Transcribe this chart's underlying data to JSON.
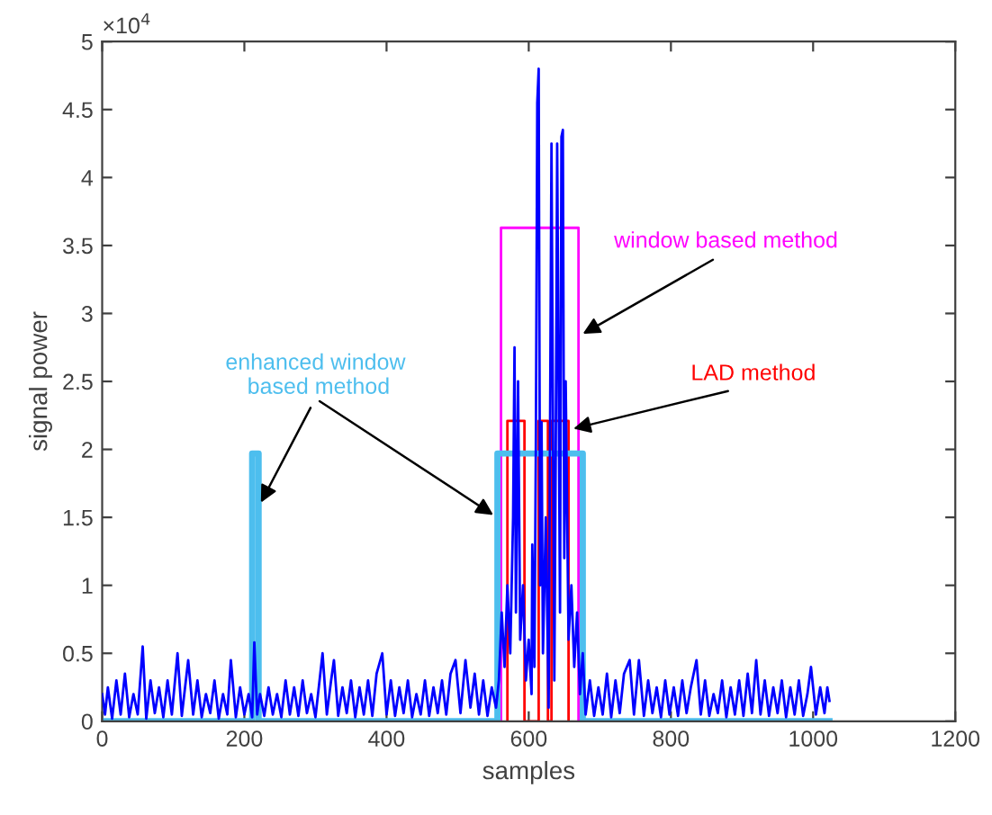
{
  "chart_data": {
    "type": "line",
    "xlabel": "samples",
    "ylabel": "signal power",
    "xlim": [
      0,
      1200
    ],
    "xticks": [
      0,
      200,
      400,
      600,
      800,
      1000,
      1200
    ],
    "ylim": [
      0,
      5
    ],
    "yticks": [
      0,
      0.5,
      1,
      1.5,
      2,
      2.5,
      3,
      3.5,
      4,
      4.5,
      5
    ],
    "grid": false,
    "legend": false,
    "marker": "none",
    "line_style": "solid",
    "annotations": [
      "×10$^{4}$"
    ],
    "series": [
      {
        "color": "#0000ff",
        "x": [
          0,
          4,
          8,
          14,
          20,
          26,
          32,
          38,
          44,
          50,
          57,
          62,
          68,
          74,
          80,
          86,
          92,
          98,
          106,
          112,
          121,
          128,
          134,
          140,
          146,
          152,
          158,
          164,
          170,
          176,
          181,
          188,
          194,
          200,
          206,
          211,
          214,
          218,
          222,
          228,
          234,
          240,
          246,
          252,
          258,
          264,
          270,
          276,
          282,
          288,
          294,
          300,
          310,
          316,
          322,
          326,
          332,
          338,
          344,
          350,
          356,
          362,
          368,
          374,
          380,
          386,
          394,
          400,
          406,
          412,
          418,
          424,
          430,
          436,
          442,
          448,
          454,
          460,
          466,
          472,
          478,
          484,
          490,
          497,
          504,
          511,
          518,
          524,
          530,
          536,
          542,
          548,
          554,
          558,
          562,
          566,
          570,
          574,
          578,
          580,
          582,
          585,
          588,
          592,
          596,
          600,
          604,
          605,
          608,
          610,
          612,
          614,
          616,
          618,
          620,
          624,
          628,
          632,
          636,
          638,
          640,
          644,
          646,
          648,
          650,
          652,
          656,
          660,
          664,
          668,
          672,
          676,
          680,
          686,
          692,
          698,
          704,
          710,
          716,
          722,
          728,
          734,
          742,
          748,
          755,
          762,
          768,
          774,
          780,
          786,
          792,
          798,
          804,
          810,
          816,
          822,
          828,
          836,
          842,
          848,
          854,
          860,
          866,
          872,
          878,
          884,
          890,
          896,
          902,
          908,
          914,
          920,
          926,
          932,
          938,
          944,
          950,
          956,
          962,
          968,
          974,
          980,
          986,
          992,
          997,
          1004,
          1010,
          1016,
          1020,
          1023
        ],
        "values": [
          0.2,
          0.05,
          0.25,
          0.02,
          0.3,
          0.05,
          0.35,
          0.03,
          0.2,
          0.05,
          0.55,
          0.02,
          0.3,
          0.06,
          0.25,
          0.03,
          0.3,
          0.05,
          0.5,
          0.04,
          0.45,
          0.05,
          0.3,
          0.03,
          0.2,
          0.06,
          0.3,
          0.02,
          0.2,
          0.05,
          0.45,
          0.03,
          0.25,
          0.05,
          0.2,
          0.03,
          0.58,
          0.05,
          0.2,
          0.04,
          0.25,
          0.05,
          0.2,
          0.03,
          0.3,
          0.05,
          0.25,
          0.04,
          0.3,
          0.06,
          0.2,
          0.03,
          0.5,
          0.05,
          0.3,
          0.45,
          0.04,
          0.25,
          0.06,
          0.3,
          0.03,
          0.25,
          0.05,
          0.3,
          0.04,
          0.35,
          0.5,
          0.05,
          0.3,
          0.04,
          0.25,
          0.06,
          0.3,
          0.03,
          0.2,
          0.05,
          0.3,
          0.04,
          0.25,
          0.06,
          0.3,
          0.05,
          0.35,
          0.45,
          0.06,
          0.45,
          0.1,
          0.35,
          0.05,
          0.3,
          0.04,
          0.25,
          0.1,
          0.3,
          0.8,
          0.4,
          1.0,
          0.5,
          1.5,
          2.75,
          0.8,
          2.5,
          0.6,
          1.0,
          0.3,
          0.6,
          0.2,
          1.3,
          0.4,
          2.0,
          4.55,
          4.8,
          1.0,
          2.2,
          0.5,
          1.5,
          0.1,
          4.25,
          0.3,
          2.0,
          4.25,
          0.8,
          4.3,
          4.35,
          1.2,
          2.5,
          0.6,
          1.0,
          0.4,
          0.8,
          0.2,
          0.5,
          0.05,
          0.3,
          0.04,
          0.25,
          0.05,
          0.35,
          0.03,
          0.3,
          0.06,
          0.35,
          0.45,
          0.05,
          0.45,
          0.04,
          0.3,
          0.06,
          0.25,
          0.03,
          0.3,
          0.05,
          0.25,
          0.04,
          0.3,
          0.06,
          0.25,
          0.45,
          0.05,
          0.3,
          0.04,
          0.2,
          0.06,
          0.3,
          0.03,
          0.25,
          0.05,
          0.3,
          0.04,
          0.35,
          0.06,
          0.45,
          0.05,
          0.3,
          0.04,
          0.25,
          0.06,
          0.3,
          0.03,
          0.25,
          0.05,
          0.3,
          0.04,
          0.2,
          0.4,
          0.05,
          0.25,
          0.06,
          0.25,
          0.15
        ]
      },
      {
        "name": "window based method",
        "color": "#ff00ff",
        "x": [
          561,
          561,
          670,
          670
        ],
        "values": [
          0,
          3.63,
          3.63,
          0
        ]
      },
      {
        "name": "LAD method",
        "color": "#ff0000",
        "x": [
          570,
          570,
          594,
          594,
          614,
          614,
          627,
          627,
          632,
          632,
          656,
          656
        ],
        "values": [
          0,
          2.21,
          2.21,
          0,
          0,
          2.21,
          2.21,
          0,
          0,
          2.21,
          2.21,
          0
        ]
      },
      {
        "name": "enhanced window\n based method",
        "color": "#4dbeee",
        "x": [
          0,
          211,
          211,
          220,
          220,
          556,
          556,
          676,
          676,
          1023
        ],
        "values": [
          0,
          0,
          1.97,
          1.97,
          0,
          0,
          1.97,
          1.97,
          0,
          0
        ]
      }
    ]
  }
}
